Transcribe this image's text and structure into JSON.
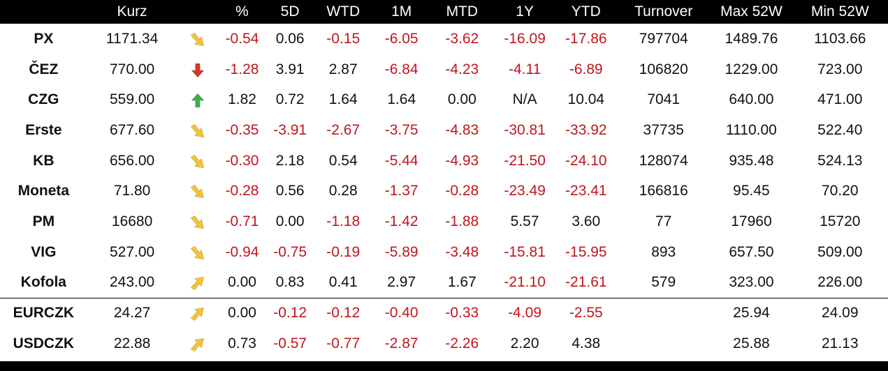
{
  "columns": [
    "",
    "Kurz",
    "",
    "%",
    "5D",
    "WTD",
    "1M",
    "MTD",
    "1Y",
    "YTD",
    "Turnover",
    "Max 52W",
    "Min 52W"
  ],
  "rows": [
    {
      "name": "PX",
      "kurz": "1171.34",
      "trend": "down-slight",
      "pct": "-0.54",
      "d5": "0.06",
      "wtd": "-0.15",
      "m1": "-6.05",
      "mtd": "-3.62",
      "y1": "-16.09",
      "ytd": "-17.86",
      "turnover": "797704",
      "max52": "1489.76",
      "min52": "1103.66"
    },
    {
      "name": "ČEZ",
      "kurz": "770.00",
      "trend": "down",
      "pct": "-1.28",
      "d5": "3.91",
      "wtd": "2.87",
      "m1": "-6.84",
      "mtd": "-4.23",
      "y1": "-4.11",
      "ytd": "-6.89",
      "turnover": "106820",
      "max52": "1229.00",
      "min52": "723.00"
    },
    {
      "name": "CZG",
      "kurz": "559.00",
      "trend": "up",
      "pct": "1.82",
      "d5": "0.72",
      "wtd": "1.64",
      "m1": "1.64",
      "mtd": "0.00",
      "y1": "N/A",
      "ytd": "10.04",
      "turnover": "7041",
      "max52": "640.00",
      "min52": "471.00"
    },
    {
      "name": "Erste",
      "kurz": "677.60",
      "trend": "down-slight",
      "pct": "-0.35",
      "d5": "-3.91",
      "wtd": "-2.67",
      "m1": "-3.75",
      "mtd": "-4.83",
      "y1": "-30.81",
      "ytd": "-33.92",
      "turnover": "37735",
      "max52": "1110.00",
      "min52": "522.40"
    },
    {
      "name": "KB",
      "kurz": "656.00",
      "trend": "down-slight",
      "pct": "-0.30",
      "d5": "2.18",
      "wtd": "0.54",
      "m1": "-5.44",
      "mtd": "-4.93",
      "y1": "-21.50",
      "ytd": "-24.10",
      "turnover": "128074",
      "max52": "935.48",
      "min52": "524.13"
    },
    {
      "name": "Moneta",
      "kurz": "71.80",
      "trend": "down-slight",
      "pct": "-0.28",
      "d5": "0.56",
      "wtd": "0.28",
      "m1": "-1.37",
      "mtd": "-0.28",
      "y1": "-23.49",
      "ytd": "-23.41",
      "turnover": "166816",
      "max52": "95.45",
      "min52": "70.20"
    },
    {
      "name": "PM",
      "kurz": "16680",
      "trend": "down-slight",
      "pct": "-0.71",
      "d5": "0.00",
      "wtd": "-1.18",
      "m1": "-1.42",
      "mtd": "-1.88",
      "y1": "5.57",
      "ytd": "3.60",
      "turnover": "77",
      "max52": "17960",
      "min52": "15720"
    },
    {
      "name": "VIG",
      "kurz": "527.00",
      "trend": "down-slight",
      "pct": "-0.94",
      "d5": "-0.75",
      "wtd": "-0.19",
      "m1": "-5.89",
      "mtd": "-3.48",
      "y1": "-15.81",
      "ytd": "-15.95",
      "turnover": "893",
      "max52": "657.50",
      "min52": "509.00"
    },
    {
      "name": "Kofola",
      "kurz": "243.00",
      "trend": "up-slight",
      "pct": "0.00",
      "d5": "0.83",
      "wtd": "0.41",
      "m1": "2.97",
      "mtd": "1.67",
      "y1": "-21.10",
      "ytd": "-21.61",
      "turnover": "579",
      "max52": "323.00",
      "min52": "226.00"
    },
    {
      "name": "EURCZK",
      "kurz": "24.27",
      "trend": "up-slight",
      "pct": "0.00",
      "d5": "-0.12",
      "wtd": "-0.12",
      "m1": "-0.40",
      "mtd": "-0.33",
      "y1": "-4.09",
      "ytd": "-2.55",
      "turnover": "",
      "max52": "25.94",
      "min52": "24.09"
    },
    {
      "name": "USDCZK",
      "kurz": "22.88",
      "trend": "up-slight",
      "pct": "0.73",
      "d5": "-0.57",
      "wtd": "-0.77",
      "m1": "-2.87",
      "mtd": "-2.26",
      "y1": "2.20",
      "ytd": "4.38",
      "turnover": "",
      "max52": "25.88",
      "min52": "21.13"
    }
  ],
  "trend_icons": {
    "down-slight": "arrow-down-right-icon",
    "down": "arrow-down-icon",
    "up": "arrow-up-icon",
    "up-slight": "arrow-up-right-icon"
  },
  "colors": {
    "header_bg": "#000000",
    "header_text": "#ffffff",
    "negative": "#c0161c",
    "positive": "#111111",
    "arrow_yellow": "#f6c431",
    "arrow_red": "#e0302a",
    "arrow_green": "#3cae4b"
  },
  "separator_before_row": 9
}
